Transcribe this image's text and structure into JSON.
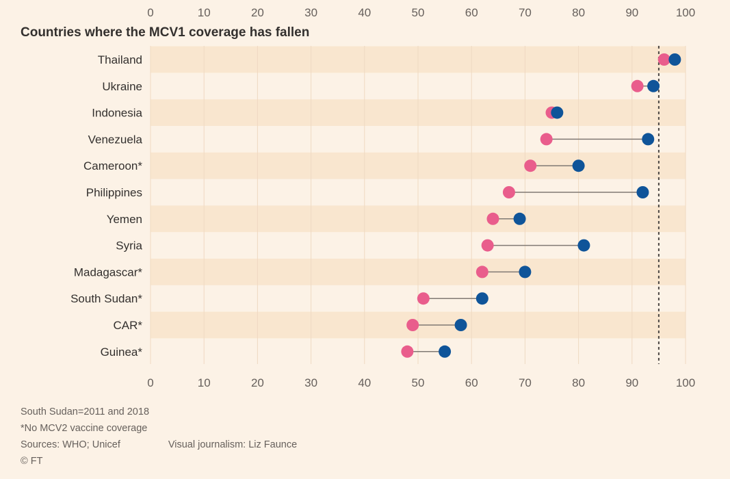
{
  "chart_data": {
    "type": "scatter",
    "subtype": "dumbbell",
    "title": "Countries where the MCV1 coverage has fallen",
    "x_ticks": [
      0,
      10,
      20,
      30,
      40,
      50,
      60,
      70,
      80,
      90,
      100
    ],
    "xlim": [
      0,
      100
    ],
    "reference_line": 95,
    "categories": [
      "Thailand",
      "Ukraine",
      "Indonesia",
      "Venezuela",
      "Cameroon*",
      "Philippines",
      "Yemen",
      "Syria",
      "Madagascar*",
      "South Sudan*",
      "CAR*",
      "Guinea*"
    ],
    "series": [
      {
        "color": "#e95d8c",
        "values": [
          96,
          91,
          75,
          74,
          71,
          67,
          64,
          63,
          62,
          51,
          49,
          48
        ]
      },
      {
        "color": "#0f5499",
        "values": [
          98,
          94,
          76,
          93,
          80,
          92,
          69,
          81,
          70,
          62,
          58,
          55
        ]
      }
    ],
    "grid": true,
    "colors": {
      "background": "#fcf2e6",
      "band": "#f9e6cf",
      "connector": "#807973",
      "reference": "#4d4845"
    }
  },
  "notes": {
    "line1": "South Sudan=2011 and 2018",
    "line2": "*No MCV2 vaccine coverage",
    "sources": "Sources: WHO; Unicef",
    "credit": "Visual journalism: Liz Faunce",
    "copyright": "© FT"
  }
}
